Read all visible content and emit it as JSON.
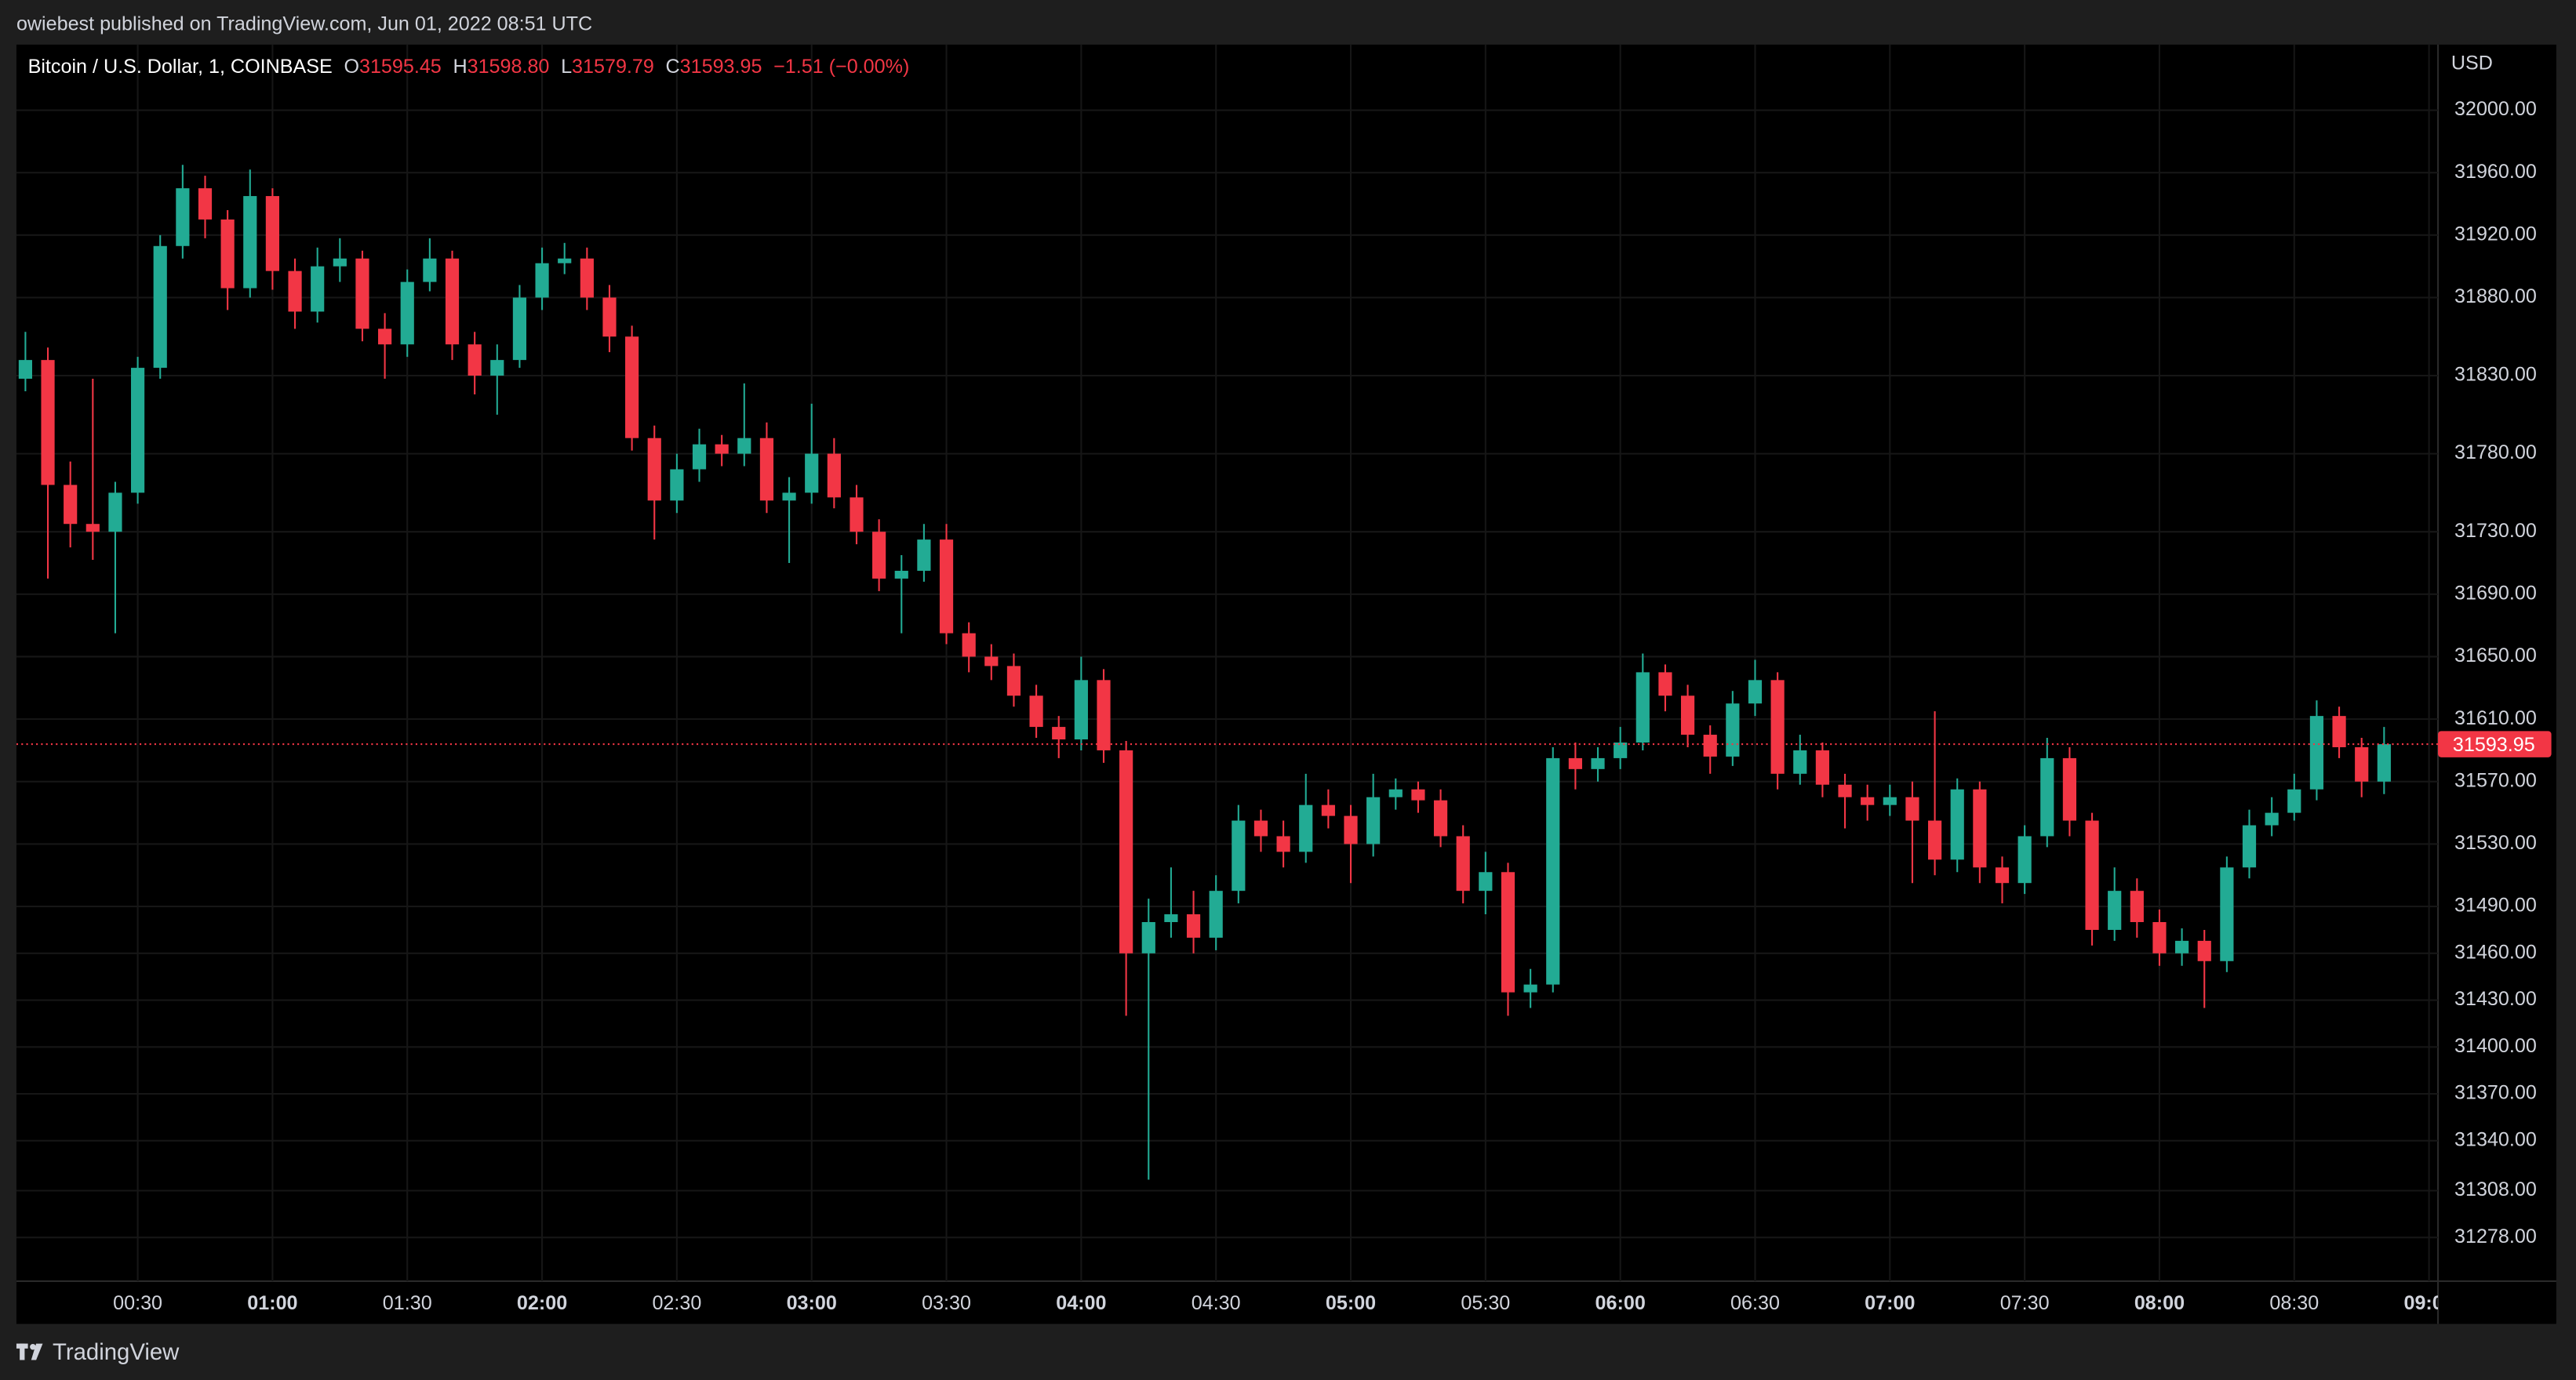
{
  "header": {
    "text": "owiebest published on TradingView.com, Jun 01, 2022 08:51 UTC"
  },
  "chart_data": {
    "type": "candlestick",
    "symbol": "Bitcoin / U.S. Dollar, 1, COINBASE",
    "ohlc_legend": [
      {
        "name": "O",
        "value": 31595.45
      },
      {
        "name": "H",
        "value": 31598.8,
        "label": "31598.80"
      },
      {
        "name": "L",
        "value": 31579.79
      },
      {
        "name": "C",
        "value": 31593.95
      }
    ],
    "change": "−1.51 (−0.00%)",
    "currency": "USD",
    "up_color": "#22ab94",
    "down_color": "#f23645",
    "grid": true,
    "last_price_line": true,
    "xlim": [
      3,
      542
    ],
    "ylim": [
      31250,
      32042
    ],
    "xticks": [
      {
        "value": 30,
        "label": "00:30"
      },
      {
        "value": 60,
        "label": "01:00"
      },
      {
        "value": 90,
        "label": "01:30"
      },
      {
        "value": 120,
        "label": "02:00"
      },
      {
        "value": 150,
        "label": "02:30"
      },
      {
        "value": 180,
        "label": "03:00"
      },
      {
        "value": 210,
        "label": "03:30"
      },
      {
        "value": 240,
        "label": "04:00"
      },
      {
        "value": 270,
        "label": "04:30"
      },
      {
        "value": 300,
        "label": "05:00"
      },
      {
        "value": 330,
        "label": "05:30"
      },
      {
        "value": 360,
        "label": "06:00"
      },
      {
        "value": 390,
        "label": "06:30"
      },
      {
        "value": 420,
        "label": "07:00"
      },
      {
        "value": 450,
        "label": "07:30"
      },
      {
        "value": 480,
        "label": "08:00"
      },
      {
        "value": 510,
        "label": "08:30"
      },
      {
        "value": 540,
        "label": "09:00"
      }
    ],
    "yticks": [
      {
        "value": 32000,
        "label": "32000.00"
      },
      {
        "value": 31960,
        "label": "31960.00"
      },
      {
        "value": 31920,
        "label": "31920.00"
      },
      {
        "value": 31880,
        "label": "31880.00"
      },
      {
        "value": 31830,
        "label": "31830.00"
      },
      {
        "value": 31780,
        "label": "31780.00"
      },
      {
        "value": 31730,
        "label": "31730.00"
      },
      {
        "value": 31690,
        "label": "31690.00"
      },
      {
        "value": 31650,
        "label": "31650.00"
      },
      {
        "value": 31610,
        "label": "31610.00"
      },
      {
        "value": 31570,
        "label": "31570.00"
      },
      {
        "value": 31530,
        "label": "31530.00"
      },
      {
        "value": 31490,
        "label": "31490.00"
      },
      {
        "value": 31460,
        "label": "31460.00"
      },
      {
        "value": 31430,
        "label": "31430.00"
      },
      {
        "value": 31400,
        "label": "31400.00"
      },
      {
        "value": 31370,
        "label": "31370.00"
      },
      {
        "value": 31340,
        "label": "31340.00"
      },
      {
        "value": 31308,
        "label": "31308.00"
      },
      {
        "value": 31278,
        "label": "31278.00"
      }
    ],
    "x": [
      5,
      10,
      15,
      20,
      25,
      30,
      35,
      40,
      45,
      50,
      55,
      60,
      65,
      70,
      75,
      80,
      85,
      90,
      95,
      100,
      105,
      110,
      115,
      120,
      125,
      130,
      135,
      140,
      145,
      150,
      155,
      160,
      165,
      170,
      175,
      180,
      185,
      190,
      195,
      200,
      205,
      210,
      215,
      220,
      225,
      230,
      235,
      240,
      245,
      250,
      255,
      260,
      265,
      270,
      275,
      280,
      285,
      290,
      295,
      300,
      305,
      310,
      315,
      320,
      325,
      330,
      335,
      340,
      345,
      350,
      355,
      360,
      365,
      370,
      375,
      380,
      385,
      390,
      395,
      400,
      405,
      410,
      415,
      420,
      425,
      430,
      435,
      440,
      445,
      450,
      455,
      460,
      465,
      470,
      475,
      480,
      485,
      490,
      495,
      500,
      505,
      510,
      515,
      520,
      525,
      530
    ],
    "open": [
      31828,
      31840,
      31760,
      31735,
      31730,
      31755,
      31835,
      31913,
      31950,
      31930,
      31886,
      31945,
      31897,
      31871,
      31900,
      31905,
      31860,
      31850,
      31890,
      31905,
      31850,
      31830,
      31840,
      31880,
      31902,
      31905,
      31880,
      31855,
      31790,
      31750,
      31770,
      31786,
      31780,
      31790,
      31750,
      31755,
      31780,
      31752,
      31730,
      31700,
      31705,
      31725,
      31665,
      31650,
      31644,
      31625,
      31605,
      31597,
      31635,
      31590,
      31460,
      31480,
      31485,
      31470,
      31500,
      31545,
      31535,
      31525,
      31555,
      31548,
      31530,
      31560,
      31565,
      31558,
      31535,
      31500,
      31512,
      31435,
      31440,
      31585,
      31578,
      31585,
      31595,
      31640,
      31625,
      31600,
      31586,
      31620,
      31635,
      31575,
      31590,
      31568,
      31560,
      31555,
      31560,
      31545,
      31520,
      31565,
      31515,
      31505,
      31535,
      31585,
      31545,
      31475,
      31500,
      31480,
      31460,
      31468,
      31455,
      31515,
      31542,
      31550,
      31565,
      31612,
      31592,
      31570
    ],
    "high": [
      31858,
      31848,
      31775,
      31828,
      31762,
      31842,
      31920,
      31965,
      31958,
      31936,
      31962,
      31950,
      31905,
      31912,
      31918,
      31910,
      31870,
      31898,
      31918,
      31910,
      31858,
      31850,
      31888,
      31912,
      31915,
      31912,
      31888,
      31862,
      31798,
      31780,
      31796,
      31792,
      31825,
      31800,
      31765,
      31812,
      31790,
      31760,
      31738,
      31715,
      31735,
      31735,
      31672,
      31658,
      31652,
      31632,
      31612,
      31650,
      31642,
      31596,
      31495,
      31515,
      31500,
      31510,
      31555,
      31552,
      31545,
      31575,
      31565,
      31555,
      31575,
      31572,
      31570,
      31565,
      31542,
      31525,
      31518,
      31450,
      31592,
      31595,
      31592,
      31605,
      31652,
      31645,
      31632,
      31606,
      31628,
      31648,
      31640,
      31600,
      31595,
      31575,
      31568,
      31568,
      31570,
      31615,
      31572,
      31570,
      31522,
      31542,
      31598,
      31592,
      31550,
      31515,
      31508,
      31488,
      31476,
      31475,
      31522,
      31552,
      31560,
      31575,
      31622,
      31618,
      31598,
      31605
    ],
    "low": [
      31820,
      31700,
      31720,
      31712,
      31665,
      31748,
      31828,
      31905,
      31918,
      31872,
      31880,
      31885,
      31860,
      31864,
      31890,
      31852,
      31828,
      31842,
      31884,
      31840,
      31818,
      31805,
      31835,
      31872,
      31895,
      31872,
      31845,
      31782,
      31725,
      31742,
      31762,
      31772,
      31772,
      31742,
      31710,
      31748,
      31745,
      31722,
      31692,
      31665,
      31698,
      31658,
      31640,
      31635,
      31618,
      31598,
      31585,
      31590,
      31582,
      31420,
      31315,
      31470,
      31460,
      31462,
      31492,
      31525,
      31515,
      31518,
      31540,
      31505,
      31522,
      31552,
      31550,
      31528,
      31492,
      31485,
      31420,
      31425,
      31435,
      31565,
      31570,
      31578,
      31590,
      31615,
      31592,
      31575,
      31580,
      31612,
      31565,
      31568,
      31560,
      31540,
      31545,
      31548,
      31505,
      31510,
      31512,
      31505,
      31492,
      31498,
      31528,
      31535,
      31465,
      31468,
      31470,
      31452,
      31452,
      31425,
      31448,
      31508,
      31535,
      31545,
      31558,
      31585,
      31560,
      31562
    ],
    "close": [
      31840,
      31760,
      31735,
      31730,
      31755,
      31835,
      31913,
      31950,
      31930,
      31886,
      31945,
      31897,
      31871,
      31900,
      31905,
      31860,
      31850,
      31890,
      31905,
      31850,
      31830,
      31840,
      31880,
      31902,
      31905,
      31880,
      31855,
      31790,
      31750,
      31770,
      31786,
      31780,
      31790,
      31750,
      31755,
      31780,
      31752,
      31730,
      31700,
      31705,
      31725,
      31665,
      31650,
      31644,
      31625,
      31605,
      31597,
      31635,
      31590,
      31460,
      31480,
      31485,
      31470,
      31500,
      31545,
      31535,
      31525,
      31555,
      31548,
      31530,
      31560,
      31565,
      31558,
      31535,
      31500,
      31512,
      31435,
      31440,
      31585,
      31578,
      31585,
      31595,
      31640,
      31625,
      31600,
      31586,
      31620,
      31635,
      31575,
      31590,
      31568,
      31560,
      31555,
      31560,
      31545,
      31520,
      31565,
      31515,
      31505,
      31535,
      31585,
      31545,
      31475,
      31500,
      31480,
      31460,
      31468,
      31455,
      31515,
      31542,
      31550,
      31565,
      31612,
      31592,
      31570,
      31593.95
    ]
  },
  "footer": {
    "brand": "TradingView"
  }
}
